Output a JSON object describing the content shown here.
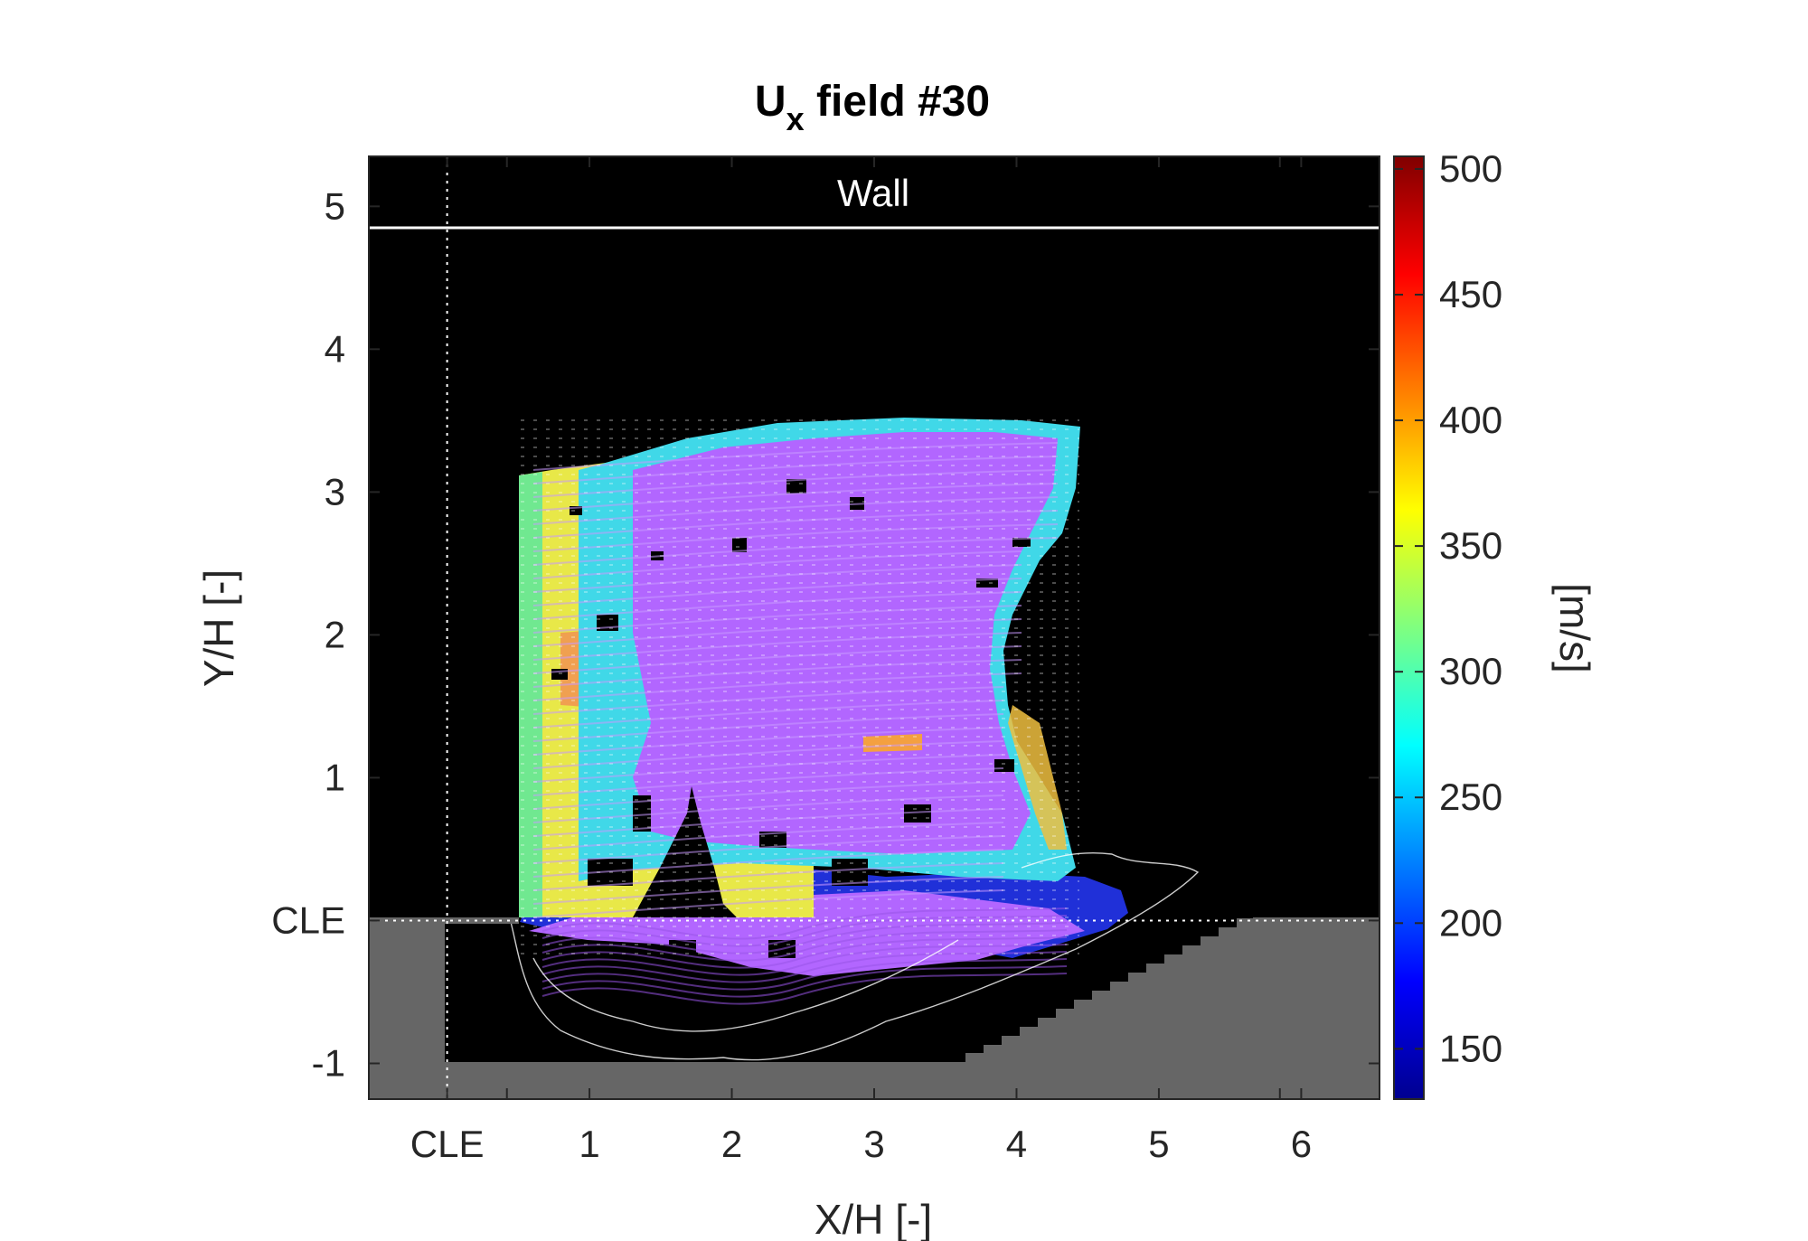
{
  "chart_data": {
    "type": "heatmap",
    "title": {
      "main": "U",
      "subscript": "x",
      "suffix": " field #30"
    },
    "xlabel": "X/H [-]",
    "ylabel": "Y/H [-]",
    "xlim": [
      -0.55,
      6.55
    ],
    "ylim": [
      -1.25,
      5.35
    ],
    "x_ticks": [
      {
        "value": 0,
        "label": "CLE"
      },
      {
        "value": 1,
        "label": "1"
      },
      {
        "value": 2,
        "label": "2"
      },
      {
        "value": 3,
        "label": "3"
      },
      {
        "value": 4,
        "label": "4"
      },
      {
        "value": 5,
        "label": "5"
      },
      {
        "value": 6,
        "label": "6"
      }
    ],
    "x_minor_ticks": [
      0.42,
      5.85
    ],
    "y_ticks": [
      {
        "value": -1,
        "label": "-1"
      },
      {
        "value": 0,
        "label": "CLE"
      },
      {
        "value": 1,
        "label": "1"
      },
      {
        "value": 2,
        "label": "2"
      },
      {
        "value": 3,
        "label": "3"
      },
      {
        "value": 4,
        "label": "4"
      },
      {
        "value": 5,
        "label": "5"
      }
    ],
    "wall": {
      "label": "Wall",
      "y": 4.85
    },
    "reference_lines": {
      "x": 0,
      "y": 0
    },
    "colorbar": {
      "label": "[m/s]",
      "range": [
        130,
        505
      ],
      "colormap": "jet",
      "ticks": [
        150,
        200,
        250,
        300,
        350,
        400,
        450,
        500
      ]
    },
    "field_extent": {
      "x": [
        0.52,
        4.85
      ],
      "y": [
        -0.68,
        3.48
      ]
    },
    "grid": false,
    "colors": {
      "background_masked": "#000000",
      "solid_region": "#666666",
      "streamline": "#b266ff"
    }
  }
}
